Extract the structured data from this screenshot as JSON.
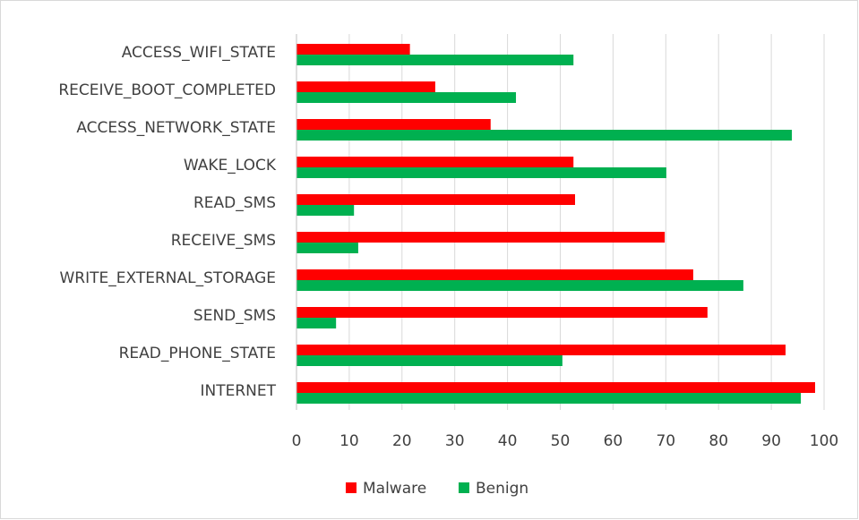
{
  "chart_data": {
    "type": "hbar",
    "categories": [
      "ACCESS_WIFI_STATE",
      "RECEIVE_BOOT_COMPLETED",
      "ACCESS_NETWORK_STATE",
      "WAKE_LOCK",
      "READ_SMS",
      "RECEIVE_SMS",
      "WRITE_EXTERNAL_STORAGE",
      "SEND_SMS",
      "READ_PHONE_STATE",
      "INTERNET"
    ],
    "series": [
      {
        "name": "Malware",
        "color": "#ff0000",
        "values": [
          21.5,
          26.3,
          36.8,
          52.5,
          52.8,
          69.8,
          75.2,
          77.9,
          92.7,
          98.3
        ]
      },
      {
        "name": "Benign",
        "color": "#00b050",
        "values": [
          52.5,
          41.6,
          93.9,
          70.1,
          10.9,
          11.7,
          84.7,
          7.5,
          50.4,
          95.6
        ]
      }
    ],
    "xlim": [
      0,
      100
    ],
    "xticks": [
      0,
      10,
      20,
      30,
      40,
      50,
      60,
      70,
      80,
      90,
      100
    ],
    "grid": true,
    "legend": "bottom"
  }
}
